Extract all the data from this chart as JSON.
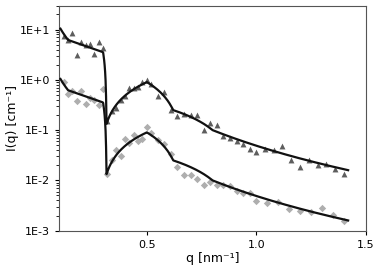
{
  "xlabel": "q [nm⁻¹]",
  "ylabel": "I(q) [cm⁻¹]",
  "xlim": [
    0.1,
    1.45
  ],
  "ylim": [
    0.001,
    30
  ],
  "yticks": [
    0.001,
    0.01,
    0.1,
    1.0,
    10.0
  ],
  "ytick_labels": [
    "1E-3",
    "1E-2",
    "1E-1",
    "1E+0",
    "1E+1"
  ],
  "xticks": [
    0.5,
    1.0,
    1.5
  ],
  "background_color": "#ffffff",
  "diamond_color": "#aaaaaa",
  "triangle_color": "#555555",
  "fit_color": "#111111",
  "fit_linewidth": 1.6,
  "upper_q_data": [
    0.12,
    0.14,
    0.16,
    0.18,
    0.2,
    0.22,
    0.24,
    0.26,
    0.28,
    0.3,
    0.32,
    0.34,
    0.36,
    0.38,
    0.4,
    0.42,
    0.44,
    0.46,
    0.48,
    0.5,
    0.52,
    0.55,
    0.58,
    0.61,
    0.64,
    0.67,
    0.7,
    0.73,
    0.76,
    0.79,
    0.82,
    0.85,
    0.88,
    0.91,
    0.94,
    0.97,
    1.0,
    1.04,
    1.08,
    1.12,
    1.16,
    1.2,
    1.24,
    1.28,
    1.32,
    1.36,
    1.4
  ],
  "lower_q_data": [
    0.12,
    0.14,
    0.16,
    0.18,
    0.2,
    0.22,
    0.24,
    0.26,
    0.28,
    0.3,
    0.32,
    0.34,
    0.36,
    0.38,
    0.4,
    0.42,
    0.44,
    0.46,
    0.48,
    0.5,
    0.52,
    0.55,
    0.58,
    0.61,
    0.64,
    0.67,
    0.7,
    0.73,
    0.76,
    0.79,
    0.82,
    0.85,
    0.88,
    0.91,
    0.94,
    0.97,
    1.0,
    1.05,
    1.1,
    1.15,
    1.2,
    1.25,
    1.3,
    1.35,
    1.4
  ],
  "noise_seed": 12
}
